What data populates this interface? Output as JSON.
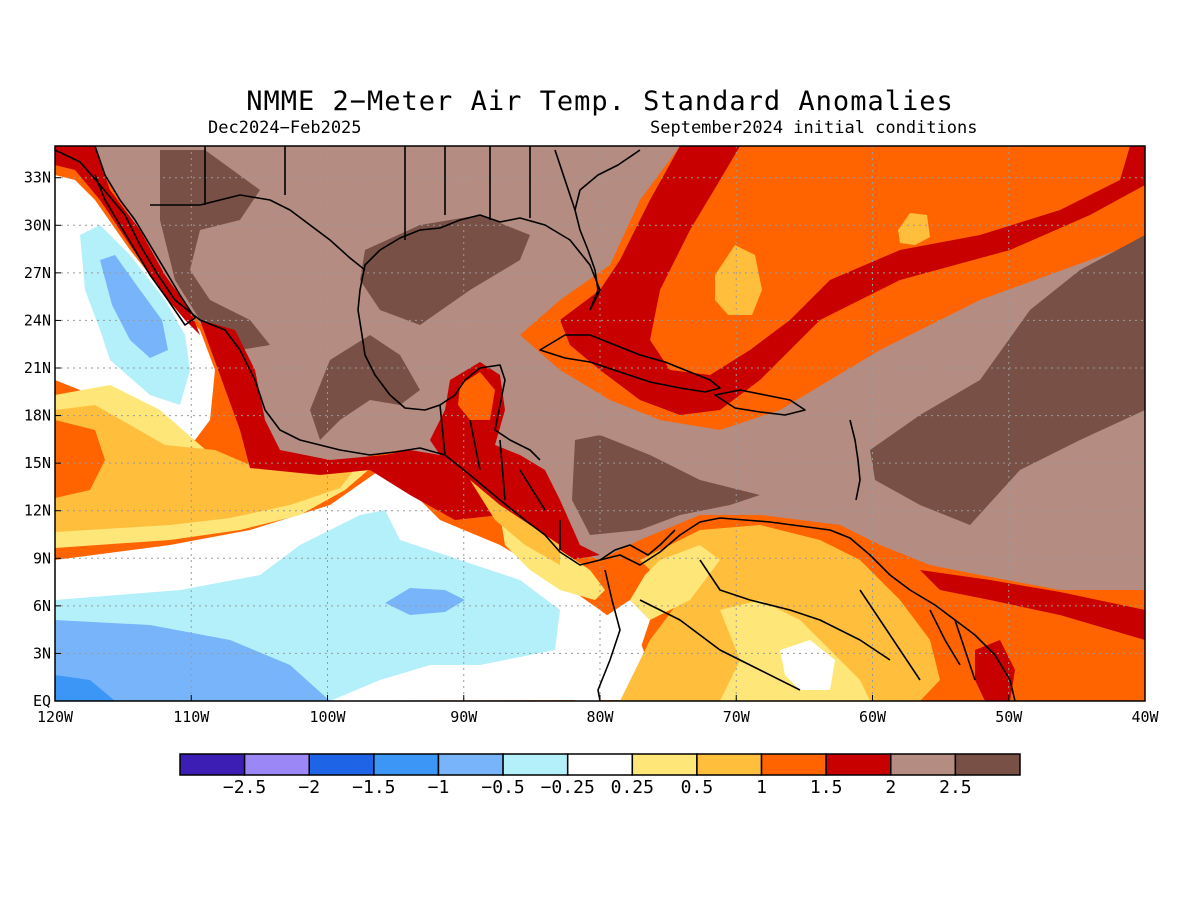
{
  "title": "NMME 2−Meter Air Temp. Standard Anomalies",
  "subtitle_left": "Dec2024−Feb2025",
  "subtitle_right": "September2024 initial conditions",
  "map": {
    "lon_range": [
      -120,
      -40
    ],
    "lat_range": [
      0,
      35
    ],
    "x_ticks": [
      {
        "lon": -120,
        "label": "120W"
      },
      {
        "lon": -110,
        "label": "110W"
      },
      {
        "lon": -100,
        "label": "100W"
      },
      {
        "lon": -90,
        "label": "90W"
      },
      {
        "lon": -80,
        "label": "80W"
      },
      {
        "lon": -70,
        "label": "70W"
      },
      {
        "lon": -60,
        "label": "60W"
      },
      {
        "lon": -50,
        "label": "50W"
      },
      {
        "lon": -40,
        "label": "40W"
      }
    ],
    "y_ticks": [
      {
        "lat": 0,
        "label": "EQ"
      },
      {
        "lat": 3,
        "label": "3N"
      },
      {
        "lat": 6,
        "label": "6N"
      },
      {
        "lat": 9,
        "label": "9N"
      },
      {
        "lat": 12,
        "label": "12N"
      },
      {
        "lat": 15,
        "label": "15N"
      },
      {
        "lat": 18,
        "label": "18N"
      },
      {
        "lat": 21,
        "label": "21N"
      },
      {
        "lat": 24,
        "label": "24N"
      },
      {
        "lat": 27,
        "label": "27N"
      },
      {
        "lat": 30,
        "label": "30N"
      },
      {
        "lat": 33,
        "label": "33N"
      }
    ],
    "grid": true
  },
  "colorbar": {
    "colors": [
      "#3c1eb4",
      "#9b87f5",
      "#1e64e6",
      "#3c96f5",
      "#78b4fa",
      "#b4f0fa",
      "#ffffff",
      "#ffe678",
      "#ffbe3c",
      "#ff6400",
      "#c80000",
      "#b48c82",
      "#785046"
    ],
    "labels": [
      "−2.5",
      "−2",
      "−1.5",
      "−1",
      "−0.5",
      "−0.25",
      "0.25",
      "0.5",
      "1",
      "1.5",
      "2",
      "2.5"
    ]
  },
  "colors": {
    "coast": "#000000",
    "grid": "#9a9a9a"
  }
}
